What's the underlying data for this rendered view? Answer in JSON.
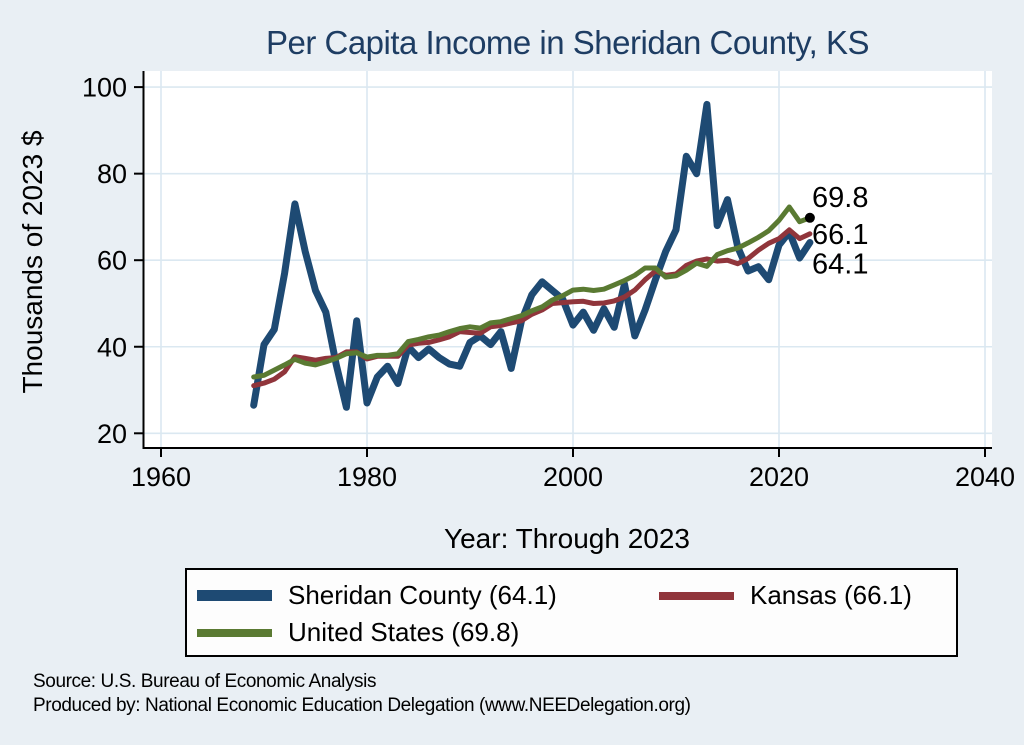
{
  "title": "Per Capita Income in Sheridan County, KS",
  "x_axis": {
    "label": "Year: Through 2023",
    "ticks": [
      1960,
      1980,
      2000,
      2020,
      2040
    ]
  },
  "y_axis": {
    "label": "Thousands of 2023 $",
    "ticks": [
      20,
      40,
      60,
      80,
      100
    ]
  },
  "colors": {
    "background": "#e9eff4",
    "plot_background": "#ffffff",
    "gridline": "#dbe8f1",
    "axis": "#000000",
    "title": "#1e3d63",
    "end_dot": "#000000"
  },
  "chart_data": {
    "type": "line",
    "title": "Per Capita Income in Sheridan County, KS",
    "xlabel": "Year: Through 2023",
    "ylabel": "Thousands of 2023 $",
    "xlim": [
      1958,
      2041
    ],
    "ylim": [
      16.5,
      104
    ],
    "grid": true,
    "legend_position": "bottom",
    "x": [
      1969,
      1970,
      1971,
      1972,
      1973,
      1974,
      1975,
      1976,
      1977,
      1978,
      1979,
      1980,
      1981,
      1982,
      1983,
      1984,
      1985,
      1986,
      1987,
      1988,
      1989,
      1990,
      1991,
      1992,
      1993,
      1994,
      1995,
      1996,
      1997,
      1998,
      1999,
      2000,
      2001,
      2002,
      2003,
      2004,
      2005,
      2006,
      2007,
      2008,
      2009,
      2010,
      2011,
      2012,
      2013,
      2014,
      2015,
      2016,
      2017,
      2018,
      2019,
      2020,
      2021,
      2022,
      2023
    ],
    "series": [
      {
        "name": "Sheridan County",
        "legend_label": "Sheridan County (64.1)",
        "color": "#1e4a73",
        "line_width": 7,
        "end_label": "64.1",
        "end_value": 64.1,
        "values": [
          26.5,
          40.5,
          44,
          57,
          73,
          62,
          53,
          48,
          36,
          26,
          46,
          27,
          33,
          35.5,
          31.5,
          40,
          37.5,
          39.5,
          37.5,
          36,
          35.5,
          41,
          42.5,
          40.5,
          43.5,
          35,
          46,
          52,
          55,
          53,
          51,
          45,
          48,
          43.8,
          48.8,
          44.5,
          54.5,
          42.5,
          48.5,
          55.5,
          62,
          67,
          84,
          80,
          96,
          68,
          74,
          63,
          57.5,
          58.5,
          55.5,
          63.5,
          66.5,
          60.5,
          64.1
        ]
      },
      {
        "name": "Kansas",
        "legend_label": "Kansas (66.1)",
        "color": "#90353b",
        "line_width": 5,
        "end_label": "66.1",
        "end_value": 66.1,
        "values": [
          31,
          31.6,
          32.5,
          34.2,
          37.7,
          37.3,
          36.9,
          37.3,
          37.5,
          38.8,
          38.8,
          37.2,
          37.8,
          37.8,
          37.8,
          40.4,
          40.8,
          41,
          41.6,
          42.3,
          43.5,
          43.3,
          43.1,
          44.6,
          44.9,
          45.5,
          46,
          47.5,
          48.5,
          50,
          50.2,
          50.4,
          50.5,
          50,
          50.1,
          50.6,
          51.5,
          53.1,
          55.5,
          57.5,
          56.5,
          56.8,
          58.8,
          59.8,
          60.3,
          59.8,
          60,
          59.2,
          60.4,
          62.3,
          63.9,
          65,
          67,
          65,
          66.1
        ]
      },
      {
        "name": "United States",
        "legend_label": "United States (69.8)",
        "color": "#5a7a32",
        "line_width": 5,
        "end_label": "69.8",
        "end_value": 69.8,
        "end_dot": true,
        "values": [
          33,
          33.4,
          34.6,
          35.8,
          37.1,
          36.2,
          35.8,
          36.5,
          37.3,
          38.4,
          38.6,
          37.6,
          38,
          38,
          38.4,
          41.2,
          41.7,
          42.3,
          42.7,
          43.5,
          44.2,
          44.6,
          44.3,
          45.5,
          45.8,
          46.5,
          47.2,
          48.3,
          49.2,
          50.8,
          51.8,
          53.1,
          53.3,
          53,
          53.3,
          54.3,
          55.3,
          56.5,
          58.2,
          58.2,
          56.1,
          56.4,
          57.7,
          59.3,
          58.6,
          61.3,
          62.2,
          62.8,
          64,
          65.3,
          66.8,
          69.2,
          72.3,
          68.9,
          69.8
        ]
      }
    ]
  },
  "footer": {
    "source_line": "Source: U.S. Bureau of Economic Analysis",
    "produced_line": "Produced by: National Economic Education Delegation (www.NEEDelegation.org)"
  }
}
